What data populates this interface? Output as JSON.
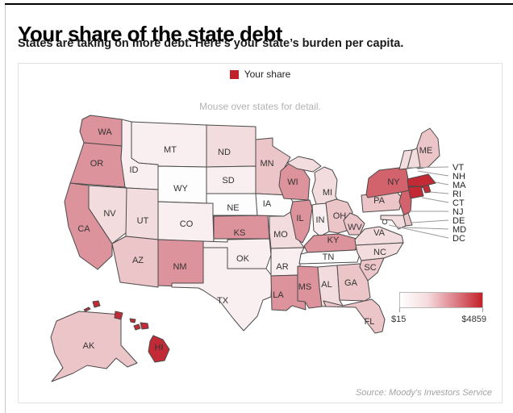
{
  "header": {
    "title": "Your share of the state debt",
    "subtitle": "States are taking on more debt. Here’s your state’s burden per capita."
  },
  "legend": {
    "label": "Your share",
    "swatch_color": "#c0222c"
  },
  "hint": "Mouse over states for detail.",
  "scale": {
    "min_label": "$15",
    "max_label": "$4859",
    "gradient": [
      "#ffffff",
      "#f5dcde",
      "#dd8089",
      "#c32128"
    ]
  },
  "source": "Source: Moody's Investors Service",
  "map_stroke": "#4a4a4a",
  "chart_data": {
    "type": "heatmap",
    "subtype": "us-choropleth",
    "title": "Your share of the state debt",
    "legend_entries": [
      "Your share"
    ],
    "value_range": {
      "min": "$15",
      "max": "$4859"
    },
    "callout_states": [
      "VT",
      "NH",
      "MA",
      "RI",
      "CT",
      "NJ",
      "DE",
      "MD",
      "DC"
    ],
    "states": [
      {
        "abbr": "WA",
        "fill": "#dd939b"
      },
      {
        "abbr": "OR",
        "fill": "#dd939b"
      },
      {
        "abbr": "CA",
        "fill": "#dd939b"
      },
      {
        "abbr": "NV",
        "fill": "#f3dcde"
      },
      {
        "abbr": "ID",
        "fill": "#f9eff0"
      },
      {
        "abbr": "UT",
        "fill": "#f3dcde"
      },
      {
        "abbr": "AZ",
        "fill": "#ecc5c8"
      },
      {
        "abbr": "MT",
        "fill": "#f9eff0"
      },
      {
        "abbr": "WY",
        "fill": "#fefdfd"
      },
      {
        "abbr": "CO",
        "fill": "#f9eff0"
      },
      {
        "abbr": "NM",
        "fill": "#dd939b"
      },
      {
        "abbr": "ND",
        "fill": "#f3dcde"
      },
      {
        "abbr": "SD",
        "fill": "#f9eff0"
      },
      {
        "abbr": "NE",
        "fill": "#fefdfd"
      },
      {
        "abbr": "KS",
        "fill": "#dd939b"
      },
      {
        "abbr": "OK",
        "fill": "#f9eff0"
      },
      {
        "abbr": "TX",
        "fill": "#f9eff0"
      },
      {
        "abbr": "MN",
        "fill": "#ecc5c8"
      },
      {
        "abbr": "IA",
        "fill": "#fefdfd"
      },
      {
        "abbr": "MO",
        "fill": "#f3dcde"
      },
      {
        "abbr": "AR",
        "fill": "#f9eff0"
      },
      {
        "abbr": "LA",
        "fill": "#dd939b"
      },
      {
        "abbr": "WI",
        "fill": "#dd939b"
      },
      {
        "abbr": "IL",
        "fill": "#dd939b"
      },
      {
        "abbr": "IN",
        "fill": "#f9eff0"
      },
      {
        "abbr": "MI",
        "fill": "#f3dcde"
      },
      {
        "abbr": "OH",
        "fill": "#ecc5c8"
      },
      {
        "abbr": "KY",
        "fill": "#dd939b"
      },
      {
        "abbr": "TN",
        "fill": "#fefdfd"
      },
      {
        "abbr": "MS",
        "fill": "#dd939b"
      },
      {
        "abbr": "AL",
        "fill": "#f3dcde"
      },
      {
        "abbr": "GA",
        "fill": "#ecc5c8"
      },
      {
        "abbr": "WV",
        "fill": "#ecc5c8"
      },
      {
        "abbr": "VA",
        "fill": "#f3dcde"
      },
      {
        "abbr": "PA",
        "fill": "#ecc5c8"
      },
      {
        "abbr": "NY",
        "fill": "#d2626c"
      },
      {
        "abbr": "NJ",
        "fill": "#d2626c"
      },
      {
        "abbr": "ME",
        "fill": "#ecc5c8"
      },
      {
        "abbr": "NH",
        "fill": "#f3dcde"
      },
      {
        "abbr": "VT",
        "fill": "#f3dcde"
      },
      {
        "abbr": "MA",
        "fill": "#c22b35"
      },
      {
        "abbr": "RI",
        "fill": "#c22b35"
      },
      {
        "abbr": "CT",
        "fill": "#c22b35"
      },
      {
        "abbr": "DE",
        "fill": "#ecc5c8"
      },
      {
        "abbr": "MD",
        "fill": "#f3dcde"
      },
      {
        "abbr": "DC",
        "fill": "#ffffff"
      },
      {
        "abbr": "NC",
        "fill": "#f3dcde"
      },
      {
        "abbr": "SC",
        "fill": "#ecc5c8"
      },
      {
        "abbr": "GA2",
        "fill": "#ecc5c8"
      },
      {
        "abbr": "FL",
        "fill": "#ecc5c8"
      },
      {
        "abbr": "AK",
        "fill": "#ecc5c8"
      },
      {
        "abbr": "HI",
        "fill": "#c22b35"
      }
    ]
  }
}
